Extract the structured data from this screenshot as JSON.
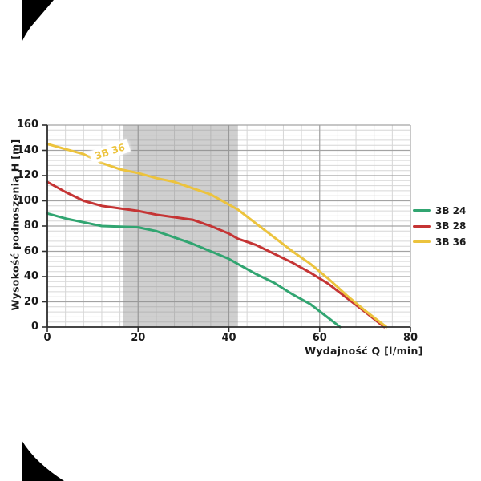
{
  "page": {
    "background": "#ffffff"
  },
  "axes": {
    "x_title": "Wydajność Q [l/min]",
    "y_title": "Wysokość podnoszenia H [m]",
    "x_tick_labels": [
      "0",
      "20",
      "40",
      "60",
      "80"
    ],
    "y_tick_labels": [
      "160",
      "140",
      "120",
      "100",
      "80",
      "60",
      "40",
      "20",
      "0"
    ]
  },
  "legend": {
    "items": [
      {
        "label": "3B 24",
        "color": "#31a571"
      },
      {
        "label": "3B 28",
        "color": "#c53434"
      },
      {
        "label": "3B 36",
        "color": "#ecc33d"
      }
    ]
  },
  "chart_data": {
    "type": "line",
    "title": "",
    "xlabel": "Wydajność Q [l/min]",
    "ylabel": "Wysokość podnoszenia H [m]",
    "xlim": [
      0,
      80
    ],
    "ylim": [
      0,
      160
    ],
    "x_ticks": [
      0,
      20,
      40,
      60,
      80
    ],
    "y_ticks": [
      160,
      140,
      120,
      100,
      80,
      60,
      40,
      20,
      0
    ],
    "minor_step_x": 4,
    "minor_step_y": 4,
    "grid": true,
    "legend_position": "right",
    "highlight_band": {
      "x_from": 16.6,
      "x_to": 42,
      "color": "#8c8c8c",
      "opacity": 0.42
    },
    "annotation": {
      "text": "3B 36",
      "x": 14,
      "y": 136,
      "color": "#ecc33d",
      "background": "#ffffff"
    },
    "series": [
      {
        "name": "3B 24",
        "color": "#31a571",
        "points": [
          [
            0,
            90
          ],
          [
            4,
            86
          ],
          [
            8,
            83
          ],
          [
            12,
            80
          ],
          [
            16,
            79.5
          ],
          [
            20,
            79
          ],
          [
            24,
            76
          ],
          [
            28,
            71
          ],
          [
            32,
            66
          ],
          [
            36,
            60
          ],
          [
            40,
            54
          ],
          [
            42,
            50
          ],
          [
            46,
            42
          ],
          [
            50,
            35
          ],
          [
            54,
            26
          ],
          [
            58,
            18
          ],
          [
            62,
            7
          ],
          [
            64.5,
            0
          ]
        ]
      },
      {
        "name": "3B 28",
        "color": "#c53434",
        "points": [
          [
            0,
            115
          ],
          [
            4,
            107
          ],
          [
            8,
            100
          ],
          [
            12,
            96
          ],
          [
            16,
            94
          ],
          [
            20,
            92
          ],
          [
            24,
            89
          ],
          [
            28,
            87
          ],
          [
            32,
            85
          ],
          [
            36,
            80
          ],
          [
            40,
            74
          ],
          [
            42,
            70
          ],
          [
            46,
            65
          ],
          [
            50,
            58
          ],
          [
            54,
            51
          ],
          [
            58,
            43
          ],
          [
            62,
            34
          ],
          [
            66,
            23
          ],
          [
            70,
            12
          ],
          [
            74.2,
            0
          ]
        ]
      },
      {
        "name": "3B 36",
        "color": "#ecc33d",
        "points": [
          [
            0,
            145
          ],
          [
            4,
            141
          ],
          [
            8,
            137
          ],
          [
            12,
            130
          ],
          [
            16,
            125
          ],
          [
            20,
            122
          ],
          [
            24,
            118
          ],
          [
            28,
            115
          ],
          [
            32,
            110
          ],
          [
            36,
            105
          ],
          [
            40,
            97
          ],
          [
            42,
            93
          ],
          [
            46,
            82
          ],
          [
            50,
            71
          ],
          [
            54,
            60
          ],
          [
            58,
            50
          ],
          [
            62,
            38
          ],
          [
            66,
            25
          ],
          [
            70,
            13
          ],
          [
            74.7,
            0
          ]
        ]
      }
    ],
    "grid_color_minor": "#d6d6d6",
    "grid_color_major": "#a3a3a3",
    "axis_color": "#2f2f2f"
  }
}
